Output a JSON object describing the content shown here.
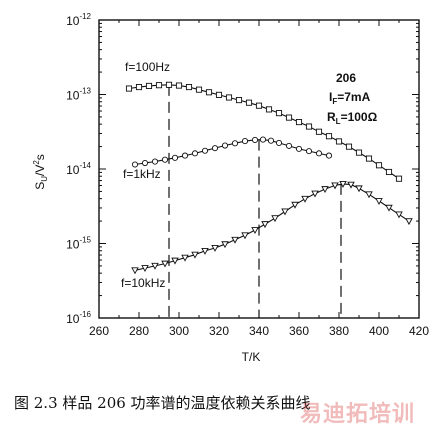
{
  "chart_data": {
    "type": "scatter",
    "xlabel": "T/K",
    "ylabel_parts": [
      "S",
      "U",
      "/V",
      "2",
      "s"
    ],
    "xlim": [
      260,
      420
    ],
    "ylim_exp": [
      -16,
      -12
    ],
    "log_y": true,
    "x_ticks": [
      "260",
      "280",
      "300",
      "320",
      "340",
      "360",
      "380",
      "400",
      "420"
    ],
    "y_tick_base": "10",
    "y_tick_exponents": [
      "-12",
      "-13",
      "-14",
      "-15",
      "-16"
    ],
    "grid": false,
    "annotations": {
      "sample": "206",
      "current_main": "I",
      "current_sub": "F",
      "current_rest": "=7mA",
      "load_main": "R",
      "load_sub": "L",
      "load_rest": "=100Ω"
    },
    "series": [
      {
        "name": "f=100Hz",
        "marker": "square",
        "peak_T": 295,
        "points": [
          [
            275,
            -12.92
          ],
          [
            280,
            -12.9
          ],
          [
            285,
            -12.885
          ],
          [
            290,
            -12.875
          ],
          [
            295,
            -12.87
          ],
          [
            300,
            -12.88
          ],
          [
            305,
            -12.9
          ],
          [
            310,
            -12.935
          ],
          [
            315,
            -12.97
          ],
          [
            320,
            -13.005
          ],
          [
            325,
            -13.04
          ],
          [
            330,
            -13.075
          ],
          [
            335,
            -13.11
          ],
          [
            340,
            -13.15
          ],
          [
            345,
            -13.2
          ],
          [
            350,
            -13.25
          ],
          [
            355,
            -13.31
          ],
          [
            360,
            -13.37
          ],
          [
            365,
            -13.43
          ],
          [
            370,
            -13.5
          ],
          [
            375,
            -13.56
          ],
          [
            380,
            -13.63
          ],
          [
            385,
            -13.7
          ],
          [
            390,
            -13.78
          ],
          [
            395,
            -13.86
          ],
          [
            400,
            -13.95
          ],
          [
            405,
            -14.04
          ],
          [
            410,
            -14.13
          ]
        ]
      },
      {
        "name": "f=1kHz",
        "marker": "circle",
        "peak_T": 340,
        "points": [
          [
            278,
            -13.94
          ],
          [
            283,
            -13.92
          ],
          [
            288,
            -13.9
          ],
          [
            293,
            -13.875
          ],
          [
            298,
            -13.85
          ],
          [
            303,
            -13.82
          ],
          [
            308,
            -13.79
          ],
          [
            313,
            -13.755
          ],
          [
            318,
            -13.72
          ],
          [
            323,
            -13.685
          ],
          [
            328,
            -13.655
          ],
          [
            333,
            -13.625
          ],
          [
            338,
            -13.61
          ],
          [
            342,
            -13.605
          ],
          [
            346,
            -13.62
          ],
          [
            350,
            -13.65
          ],
          [
            355,
            -13.69
          ],
          [
            360,
            -13.73
          ],
          [
            365,
            -13.76
          ],
          [
            370,
            -13.79
          ],
          [
            375,
            -13.82
          ]
        ]
      },
      {
        "name": "f=10kHz",
        "marker": "triangle",
        "peak_T": 381,
        "points": [
          [
            278,
            -15.36
          ],
          [
            283,
            -15.33
          ],
          [
            288,
            -15.3
          ],
          [
            293,
            -15.27
          ],
          [
            298,
            -15.23
          ],
          [
            303,
            -15.19
          ],
          [
            308,
            -15.15
          ],
          [
            313,
            -15.1
          ],
          [
            318,
            -15.06
          ],
          [
            323,
            -15.01
          ],
          [
            328,
            -14.95
          ],
          [
            333,
            -14.89
          ],
          [
            338,
            -14.82
          ],
          [
            343,
            -14.74
          ],
          [
            348,
            -14.66
          ],
          [
            353,
            -14.57
          ],
          [
            358,
            -14.48
          ],
          [
            363,
            -14.4
          ],
          [
            368,
            -14.33
          ],
          [
            373,
            -14.27
          ],
          [
            378,
            -14.22
          ],
          [
            382,
            -14.2
          ],
          [
            386,
            -14.21
          ],
          [
            390,
            -14.26
          ],
          [
            395,
            -14.34
          ],
          [
            400,
            -14.43
          ],
          [
            405,
            -14.52
          ],
          [
            410,
            -14.61
          ],
          [
            415,
            -14.7
          ]
        ]
      }
    ]
  },
  "caption": "图 2.3 样品 206 功率谱的温度依赖关系曲线",
  "watermark": "易迪拓培训"
}
